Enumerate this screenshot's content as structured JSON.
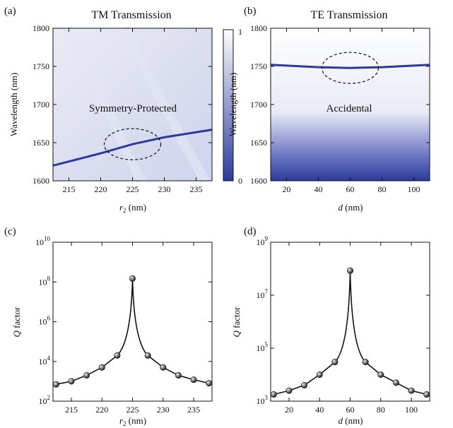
{
  "chart_data": [
    {
      "panel": "(a)",
      "type": "heatmap",
      "title": "TM Transmission",
      "xlabel_main": "r",
      "xlabel_sub": "2",
      "xlabel_unit": " (nm)",
      "ylabel": "Wavelength (nm)",
      "xlim": [
        212.5,
        237.5
      ],
      "ylim": [
        1600,
        1800
      ],
      "xticks": [
        215,
        220,
        225,
        230,
        235
      ],
      "yticks": [
        1600,
        1650,
        1700,
        1750,
        1800
      ],
      "colorbar": {
        "min": 0,
        "max": 1,
        "labels": [
          "1",
          "0"
        ],
        "low_color": "#2b3a9c",
        "high_color": "#ffffff"
      },
      "resonance_line": [
        [
          212.5,
          1620
        ],
        [
          220,
          1636
        ],
        [
          225,
          1648
        ],
        [
          230,
          1657
        ],
        [
          237.5,
          1667
        ]
      ],
      "annotation": "Symmetry-Protected",
      "circled_point": [
        225,
        1648
      ]
    },
    {
      "panel": "(b)",
      "type": "heatmap",
      "title": "TE Transmission",
      "xlabel_main": "d",
      "xlabel_unit": " (nm)",
      "ylabel": "Wavelength (nm)",
      "xlim": [
        10,
        110
      ],
      "ylim": [
        1600,
        1800
      ],
      "xticks": [
        20,
        40,
        60,
        80,
        100
      ],
      "yticks": [
        1600,
        1650,
        1700,
        1750,
        1800
      ],
      "resonance_line": [
        [
          10,
          1752
        ],
        [
          40,
          1749
        ],
        [
          60,
          1748
        ],
        [
          80,
          1749
        ],
        [
          110,
          1752
        ]
      ],
      "annotation": "Accidental",
      "circled_point": [
        60,
        1748
      ]
    },
    {
      "panel": "(c)",
      "type": "line",
      "xlabel_main": "r",
      "xlabel_sub": "2",
      "xlabel_unit": " (nm)",
      "ylabel_main": "Q",
      "ylabel_unit": " factor",
      "log_y": true,
      "xlim": [
        212,
        238
      ],
      "ylim_exp": [
        2,
        10
      ],
      "xticks": [
        215,
        220,
        225,
        230,
        235
      ],
      "yticks_exp": [
        2,
        4,
        6,
        8,
        10
      ],
      "x": [
        212.5,
        215,
        217.5,
        220,
        222.5,
        225,
        227.5,
        230,
        232.5,
        235,
        237.5
      ],
      "y": [
        700,
        1000,
        2000,
        5000,
        20000,
        150000000,
        20000,
        5000,
        2000,
        1200,
        800
      ],
      "peak_x": 225
    },
    {
      "panel": "(d)",
      "type": "line",
      "xlabel_main": "d",
      "xlabel_unit": " (nm)",
      "ylabel_main": "Q",
      "ylabel_unit": " factor",
      "log_y": true,
      "xlim": [
        8,
        112
      ],
      "ylim_exp": [
        3,
        9
      ],
      "xticks": [
        20,
        40,
        60,
        80,
        100
      ],
      "yticks_exp": [
        3,
        5,
        7,
        9
      ],
      "x": [
        10,
        20,
        30,
        40,
        50,
        60,
        70,
        80,
        90,
        100,
        110
      ],
      "y": [
        1800,
        2500,
        4000,
        10000,
        30000,
        85000000,
        30000,
        10000,
        5000,
        2500,
        1800
      ],
      "peak_x": 60
    }
  ],
  "icons": {
    "marker": "sphere-marker-icon"
  }
}
